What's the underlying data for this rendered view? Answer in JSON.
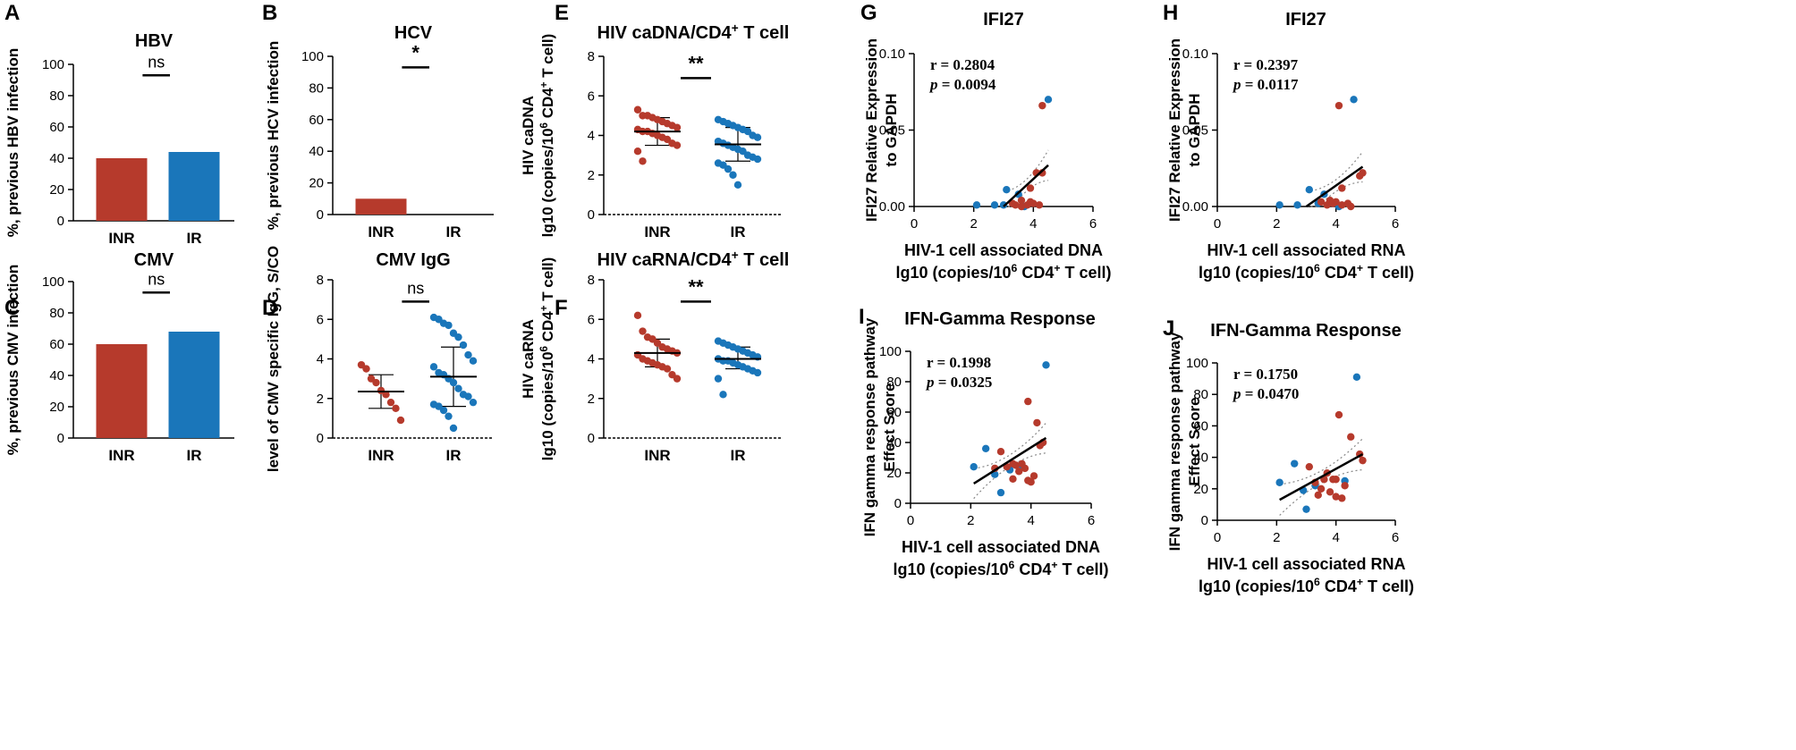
{
  "colors": {
    "inr": "#b63a2c",
    "ir": "#1a76ba",
    "axis": "#000000",
    "ci": "#888888"
  },
  "chart_data": [
    {
      "id": "A",
      "type": "bar",
      "title": "HBV",
      "ylabel": "%, previous HBV infection",
      "categories": [
        "INR",
        "IR"
      ],
      "values": [
        40,
        44
      ],
      "ylim": [
        0,
        100
      ],
      "ticks": [
        0,
        20,
        40,
        60,
        80,
        100
      ],
      "sig": "ns"
    },
    {
      "id": "B",
      "type": "bar",
      "title": "HCV",
      "ylabel": "%, previous HCV infection",
      "categories": [
        "INR",
        "IR"
      ],
      "values": [
        10,
        0
      ],
      "ylim": [
        0,
        100
      ],
      "ticks": [
        0,
        20,
        40,
        60,
        80,
        100
      ],
      "sig": "*"
    },
    {
      "id": "C",
      "type": "bar",
      "title": "CMV",
      "ylabel": "%, previous CMV infection",
      "categories": [
        "INR",
        "IR"
      ],
      "values": [
        60,
        68
      ],
      "ylim": [
        0,
        100
      ],
      "ticks": [
        0,
        20,
        40,
        60,
        80,
        100
      ],
      "sig": "ns"
    },
    {
      "id": "D",
      "type": "scatter",
      "title": "CMV IgG",
      "ylabel": "level of CMV specific IgG, S/CO",
      "categories": [
        "INR",
        "IR"
      ],
      "ylim": [
        0,
        8
      ],
      "ticks": [
        0,
        2,
        4,
        6,
        8
      ],
      "sig": "ns",
      "groups": [
        {
          "name": "INR",
          "mean": 2.35,
          "sd_low": 1.5,
          "sd_high": 3.2,
          "values": [
            3.7,
            3.5,
            3.0,
            2.8,
            2.4,
            2.2,
            1.8,
            1.5,
            0.9
          ]
        },
        {
          "name": "IR",
          "mean": 3.1,
          "sd_low": 1.6,
          "sd_high": 4.6,
          "values": [
            6.1,
            6.0,
            5.8,
            5.7,
            5.3,
            5.1,
            4.7,
            4.2,
            3.9,
            3.6,
            3.3,
            3.2,
            3.0,
            2.8,
            2.5,
            2.2,
            2.1,
            1.8,
            1.7,
            1.6,
            1.4,
            1.1,
            0.5
          ]
        }
      ]
    },
    {
      "id": "E",
      "type": "scatter",
      "title": "HIV caDNA/CD4",
      "title_sup": "+",
      "title_suffix": " T cell",
      "ylabel_lines": [
        "HIV caDNA",
        "lg10 (copies/10",
        "6",
        " CD4",
        "+",
        " T cell)"
      ],
      "categories": [
        "INR",
        "IR"
      ],
      "ylim": [
        0,
        8
      ],
      "ticks": [
        0,
        2,
        4,
        6,
        8
      ],
      "sig": "**",
      "groups": [
        {
          "name": "INR",
          "mean": 4.2,
          "sd_low": 3.5,
          "sd_high": 4.9,
          "values": [
            5.3,
            5.0,
            5.0,
            4.9,
            4.8,
            4.7,
            4.6,
            4.5,
            4.4,
            4.3,
            4.2,
            4.2,
            4.1,
            4.0,
            3.9,
            3.8,
            3.6,
            3.5,
            3.2,
            2.7
          ]
        },
        {
          "name": "IR",
          "mean": 3.55,
          "sd_low": 2.7,
          "sd_high": 4.4,
          "values": [
            4.8,
            4.7,
            4.6,
            4.5,
            4.4,
            4.3,
            4.2,
            4.0,
            3.9,
            3.7,
            3.6,
            3.5,
            3.4,
            3.3,
            3.2,
            3.0,
            2.9,
            2.8,
            2.6,
            2.5,
            2.3,
            2.0,
            1.5
          ]
        }
      ]
    },
    {
      "id": "F",
      "type": "scatter",
      "title": "HIV caRNA/CD4",
      "title_sup": "+",
      "title_suffix": " T cell",
      "ylabel_lines": [
        "HIV caRNA",
        "lg10 (copies/10",
        "6",
        " CD4",
        "+",
        " T cell)"
      ],
      "categories": [
        "INR",
        "IR"
      ],
      "ylim": [
        0,
        8
      ],
      "ticks": [
        0,
        2,
        4,
        6,
        8
      ],
      "sig": "**",
      "groups": [
        {
          "name": "INR",
          "mean": 4.3,
          "sd_low": 3.6,
          "sd_high": 5.0,
          "values": [
            6.2,
            5.4,
            5.1,
            5.0,
            4.8,
            4.6,
            4.5,
            4.4,
            4.3,
            4.2,
            4.0,
            3.9,
            3.8,
            3.7,
            3.6,
            3.5,
            3.2,
            3.0
          ]
        },
        {
          "name": "IR",
          "mean": 4.0,
          "sd_low": 3.5,
          "sd_high": 4.6,
          "values": [
            4.9,
            4.8,
            4.7,
            4.6,
            4.5,
            4.4,
            4.3,
            4.2,
            4.1,
            4.0,
            3.9,
            3.9,
            3.8,
            3.7,
            3.6,
            3.5,
            3.4,
            3.3,
            3.0,
            2.2
          ]
        }
      ]
    },
    {
      "id": "G",
      "type": "scatter",
      "title": "IFI27",
      "ylabel_lines": [
        "IFI27 Relative Expression",
        "to GAPDH"
      ],
      "xlabel": "HIV-1 cell associated DNA",
      "xlabel2": [
        "lg10 (copies/10",
        "6",
        " CD4",
        "+",
        " T cell)"
      ],
      "xlim": [
        0,
        6
      ],
      "ylim": [
        0,
        0.1
      ],
      "xticks": [
        0,
        2,
        4,
        6
      ],
      "yticks": [
        "0.00",
        "0.05",
        "0.10"
      ],
      "yticks_v": [
        0,
        0.05,
        0.1
      ],
      "r": "r = 0.2804",
      "p_label": "p",
      "p_value": " = 0.0094",
      "fit": [
        [
          3.0,
          0.0
        ],
        [
          4.5,
          0.027
        ]
      ],
      "points_inr": [
        [
          4.3,
          0.066
        ],
        [
          4.1,
          0.022
        ],
        [
          4.3,
          0.022
        ],
        [
          3.9,
          0.012
        ],
        [
          3.6,
          0.004
        ],
        [
          3.9,
          0.003
        ],
        [
          4.0,
          0.002
        ],
        [
          3.3,
          0.002
        ],
        [
          3.4,
          0.001
        ],
        [
          3.8,
          0.001
        ],
        [
          4.2,
          0.001
        ],
        [
          3.6,
          0.0
        ]
      ],
      "points_ir": [
        [
          4.5,
          0.07
        ],
        [
          3.1,
          0.011
        ],
        [
          3.5,
          0.008
        ],
        [
          2.1,
          0.001
        ],
        [
          2.7,
          0.001
        ],
        [
          3.0,
          0.001
        ],
        [
          3.7,
          0.0
        ]
      ]
    },
    {
      "id": "H",
      "type": "scatter",
      "title": "IFI27",
      "ylabel_lines": [
        "IFI27 Relative Expression",
        "to GAPDH"
      ],
      "xlabel": "HIV-1 cell associated RNA",
      "xlabel2": [
        "lg10 (copies/10",
        "6",
        " CD4",
        "+",
        " T cell)"
      ],
      "xlim": [
        0,
        6
      ],
      "ylim": [
        0,
        0.1
      ],
      "xticks": [
        0,
        2,
        4,
        6
      ],
      "yticks": [
        "0.00",
        "0.05",
        "0.10"
      ],
      "yticks_v": [
        0,
        0.05,
        0.1
      ],
      "r": "r = 0.2397",
      "p_label": "p",
      "p_value": " = 0.0117",
      "fit": [
        [
          3.0,
          0.0
        ],
        [
          4.9,
          0.026
        ]
      ],
      "points_inr": [
        [
          4.1,
          0.066
        ],
        [
          4.9,
          0.022
        ],
        [
          4.8,
          0.02
        ],
        [
          4.2,
          0.012
        ],
        [
          3.8,
          0.004
        ],
        [
          4.0,
          0.003
        ],
        [
          3.5,
          0.003
        ],
        [
          3.9,
          0.002
        ],
        [
          4.4,
          0.002
        ],
        [
          4.2,
          0.001
        ],
        [
          3.7,
          0.001
        ],
        [
          4.5,
          0.0
        ]
      ],
      "points_ir": [
        [
          4.6,
          0.07
        ],
        [
          3.1,
          0.011
        ],
        [
          3.6,
          0.008
        ],
        [
          2.1,
          0.001
        ],
        [
          2.7,
          0.001
        ],
        [
          3.4,
          0.002
        ],
        [
          4.1,
          0.0
        ]
      ]
    },
    {
      "id": "I",
      "type": "scatter",
      "title": "IFN-Gamma Response",
      "ylabel_lines": [
        "IFN gamma response pathway",
        "Effect Score"
      ],
      "xlabel": "HIV-1 cell associated DNA",
      "xlabel2": [
        "lg10 (copies/10",
        "6",
        " CD4",
        "+",
        " T cell)"
      ],
      "xlim": [
        0,
        6
      ],
      "ylim": [
        0,
        100
      ],
      "xticks": [
        0,
        2,
        4,
        6
      ],
      "yticks": [
        "0",
        "20",
        "40",
        "60",
        "80",
        "100"
      ],
      "yticks_v": [
        0,
        20,
        40,
        60,
        80,
        100
      ],
      "r": "r = 0.1998",
      "p_label": "p",
      "p_value": " = 0.0325",
      "fit": [
        [
          2.1,
          13
        ],
        [
          4.5,
          43
        ]
      ],
      "points_inr": [
        [
          3.9,
          67
        ],
        [
          4.2,
          53
        ],
        [
          4.4,
          40
        ],
        [
          4.3,
          38
        ],
        [
          3.0,
          34
        ],
        [
          3.4,
          26
        ],
        [
          3.7,
          26
        ],
        [
          3.5,
          25
        ],
        [
          3.2,
          24
        ],
        [
          3.8,
          23
        ],
        [
          2.8,
          23
        ],
        [
          3.6,
          21
        ],
        [
          4.1,
          18
        ],
        [
          3.4,
          16
        ],
        [
          3.9,
          15
        ],
        [
          4.0,
          14
        ]
      ],
      "points_ir": [
        [
          4.5,
          91
        ],
        [
          2.5,
          36
        ],
        [
          2.1,
          24
        ],
        [
          3.7,
          25
        ],
        [
          3.3,
          22
        ],
        [
          2.8,
          19
        ],
        [
          3.0,
          7
        ]
      ]
    },
    {
      "id": "J",
      "type": "scatter",
      "title": "IFN-Gamma Response",
      "ylabel_lines": [
        "IFN gamma response pathway",
        "Effect Score"
      ],
      "xlabel": "HIV-1 cell associated RNA",
      "xlabel2": [
        "lg10 (copies/10",
        "6",
        " CD4",
        "+",
        " T cell)"
      ],
      "xlim": [
        0,
        6
      ],
      "ylim": [
        0,
        100
      ],
      "xticks": [
        0,
        2,
        4,
        6
      ],
      "yticks": [
        "0",
        "20",
        "40",
        "60",
        "80",
        "100"
      ],
      "yticks_v": [
        0,
        20,
        40,
        60,
        80,
        100
      ],
      "r": "r = 0.1750",
      "p_label": "p",
      "p_value": " = 0.0470",
      "fit": [
        [
          2.1,
          13
        ],
        [
          4.9,
          42
        ]
      ],
      "points_inr": [
        [
          4.1,
          67
        ],
        [
          4.5,
          53
        ],
        [
          4.8,
          42
        ],
        [
          4.9,
          38
        ],
        [
          3.1,
          34
        ],
        [
          3.7,
          30
        ],
        [
          3.9,
          26
        ],
        [
          4.0,
          26
        ],
        [
          3.6,
          26
        ],
        [
          3.3,
          24
        ],
        [
          4.3,
          22
        ],
        [
          3.5,
          20
        ],
        [
          3.8,
          18
        ],
        [
          3.4,
          16
        ],
        [
          4.0,
          15
        ],
        [
          4.2,
          14
        ]
      ],
      "points_ir": [
        [
          4.7,
          91
        ],
        [
          2.6,
          36
        ],
        [
          2.1,
          24
        ],
        [
          4.3,
          25
        ],
        [
          3.3,
          22
        ],
        [
          2.9,
          19
        ],
        [
          3.0,
          7
        ]
      ]
    }
  ]
}
